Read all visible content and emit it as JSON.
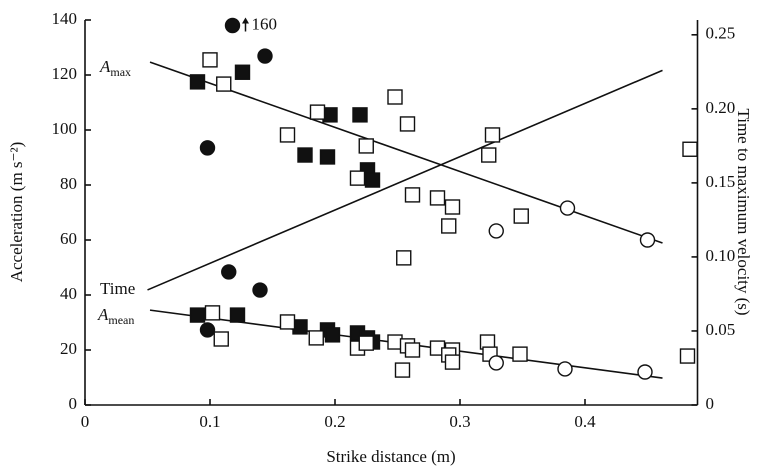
{
  "chart_data": {
    "type": "scatter",
    "x_label": "Strike distance (m)",
    "y_label": "Acceleration (m s⁻²)",
    "y2_label": "Time to maximum velocity (s)",
    "xlim": [
      0,
      0.49
    ],
    "xticks": [
      0,
      0.1,
      0.2,
      0.3,
      0.4
    ],
    "ylim": [
      0,
      140
    ],
    "yticks": [
      0,
      20,
      40,
      60,
      80,
      100,
      120,
      140
    ],
    "y2lim": [
      0,
      0.26
    ],
    "y2ticks": [
      0,
      0.05,
      {
        "value": 0.1,
        "label": "0.10"
      },
      0.15,
      {
        "value": 0.2,
        "label": "0.20"
      },
      0.25
    ],
    "color": "#111111",
    "series": [
      {
        "marker": "circle",
        "filled": true,
        "x": [
          0.118,
          0.144,
          0.098,
          0.115,
          0.14,
          0.098
        ],
        "values": [
          138,
          126.9,
          93.5,
          48.4,
          41.8,
          27.3
        ],
        "value_labels": [
          "160",
          null,
          null,
          null,
          null,
          null
        ]
      },
      {
        "marker": "square",
        "filled": true,
        "x": [
          0.09,
          0.126,
          0.196,
          0.22,
          0.176,
          0.194,
          0.226,
          0.23,
          0.09,
          0.122,
          0.172,
          0.194,
          0.198,
          0.218,
          0.226,
          0.23
        ],
        "values": [
          117.5,
          121,
          105.5,
          105.5,
          90.9,
          90.2,
          85.5,
          81.8,
          32.7,
          32.7,
          28.4,
          27.3,
          25.5,
          26.2,
          24.4,
          22.9
        ]
      },
      {
        "marker": "square",
        "filled": false,
        "x": [
          0.1,
          0.111,
          0.186,
          0.162,
          0.225,
          0.218,
          0.248,
          0.258,
          0.262,
          0.282,
          0.294,
          0.291,
          0.255,
          0.326,
          0.323,
          0.349,
          0.484,
          0.102,
          0.109,
          0.162,
          0.185,
          0.218,
          0.225,
          0.248,
          0.254,
          0.258,
          0.262,
          0.282,
          0.294,
          0.291,
          0.294,
          0.322,
          0.324,
          0.348,
          0.482
        ],
        "values": [
          125.5,
          116.7,
          106.5,
          98.2,
          94.2,
          82.5,
          112,
          102.2,
          76.4,
          75.3,
          72,
          65.1,
          53.5,
          98.2,
          90.9,
          68.7,
          93,
          33.5,
          24,
          30.2,
          24.4,
          20.7,
          22.5,
          22.9,
          12.7,
          21.5,
          20,
          20.7,
          20,
          18.2,
          15.6,
          22.9,
          18.5,
          18.5,
          17.8
        ]
      },
      {
        "marker": "circle",
        "filled": false,
        "x": [
          0.329,
          0.386,
          0.45,
          0.329,
          0.384,
          0.448
        ],
        "values": [
          63.3,
          71.6,
          60,
          15.3,
          13.1,
          12
        ]
      }
    ],
    "fits": [
      {
        "label": "A",
        "subscript": "max",
        "x": [
          0.052,
          0.462
        ],
        "values": [
          124.7,
          58.9
        ]
      },
      {
        "label": "Time",
        "axis": "y2",
        "x": [
          0.05,
          0.462
        ],
        "values": [
          0.0777,
          0.226
        ]
      },
      {
        "label": "A",
        "subscript": "mean",
        "x": [
          0.052,
          0.462
        ],
        "values": [
          34.5,
          9.8
        ]
      }
    ]
  }
}
